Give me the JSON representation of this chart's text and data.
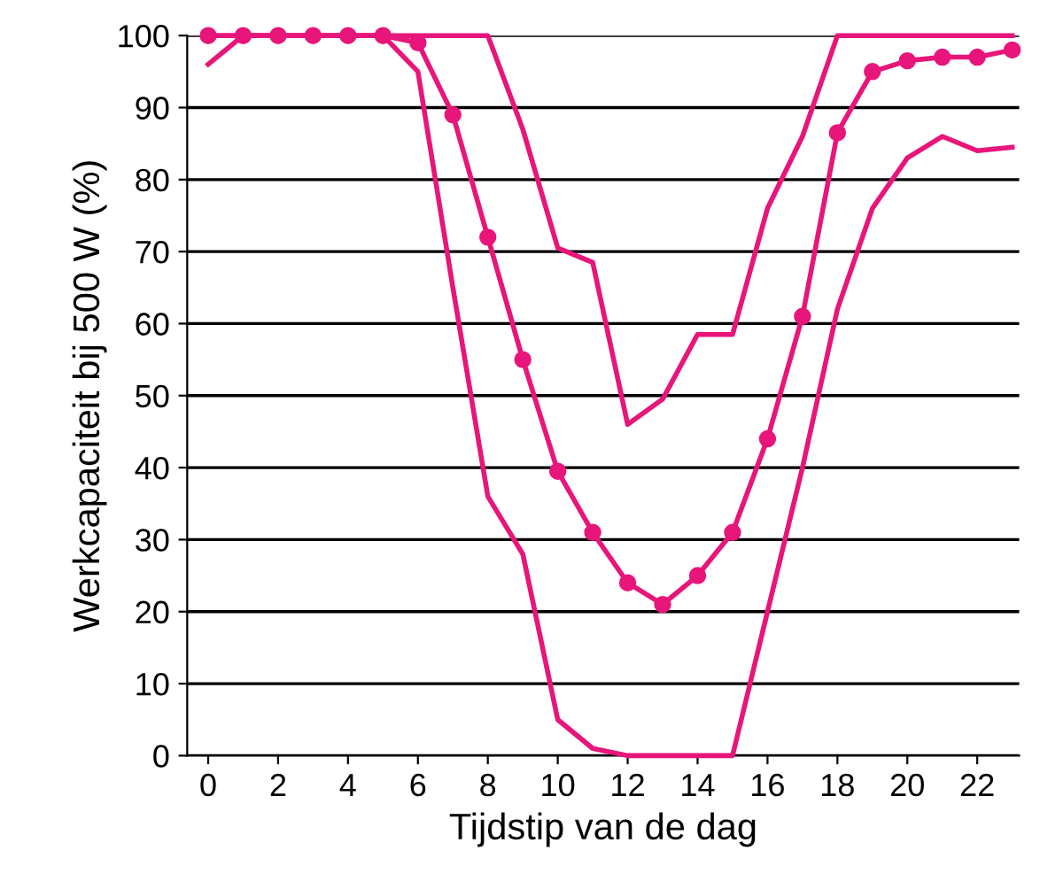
{
  "chart_data": {
    "type": "line",
    "xlabel": "Tijdstip van de dag",
    "ylabel": "Werkcapaciteit bij 500 W (%)",
    "x": [
      0,
      1,
      2,
      3,
      4,
      5,
      6,
      7,
      8,
      9,
      10,
      11,
      12,
      13,
      14,
      15,
      16,
      17,
      18,
      19,
      20,
      21,
      22,
      23
    ],
    "series": [
      {
        "color": "#e8157a",
        "marker": "none",
        "values": [
          100,
          100,
          100,
          100,
          100,
          100,
          100,
          100,
          100,
          87,
          70.5,
          68.5,
          46,
          49.5,
          58.5,
          58.5,
          76,
          86,
          100,
          100,
          100,
          100,
          100,
          100
        ]
      },
      {
        "color": "#e8157a",
        "marker": "circle",
        "values": [
          100,
          100,
          100,
          100,
          100,
          100,
          99,
          89,
          72,
          55,
          39.5,
          31,
          24,
          21,
          25,
          31,
          44,
          61,
          86.5,
          95,
          96.5,
          97,
          97,
          98
        ]
      },
      {
        "color": "#e8157a",
        "marker": "none",
        "values": [
          96,
          100,
          100,
          100,
          100,
          100,
          95,
          65,
          36,
          28,
          5,
          1,
          0,
          0,
          0,
          0,
          20,
          40,
          62,
          76,
          83,
          86,
          84,
          84.5
        ]
      }
    ],
    "xlim": [
      -0.6,
      23.2
    ],
    "ylim": [
      0,
      100
    ],
    "xticks": [
      0,
      2,
      4,
      6,
      8,
      10,
      12,
      14,
      16,
      18,
      20,
      22
    ],
    "yticks": [
      0,
      10,
      20,
      30,
      40,
      50,
      60,
      70,
      80,
      90,
      100
    ],
    "grid": "y",
    "legend": false
  }
}
